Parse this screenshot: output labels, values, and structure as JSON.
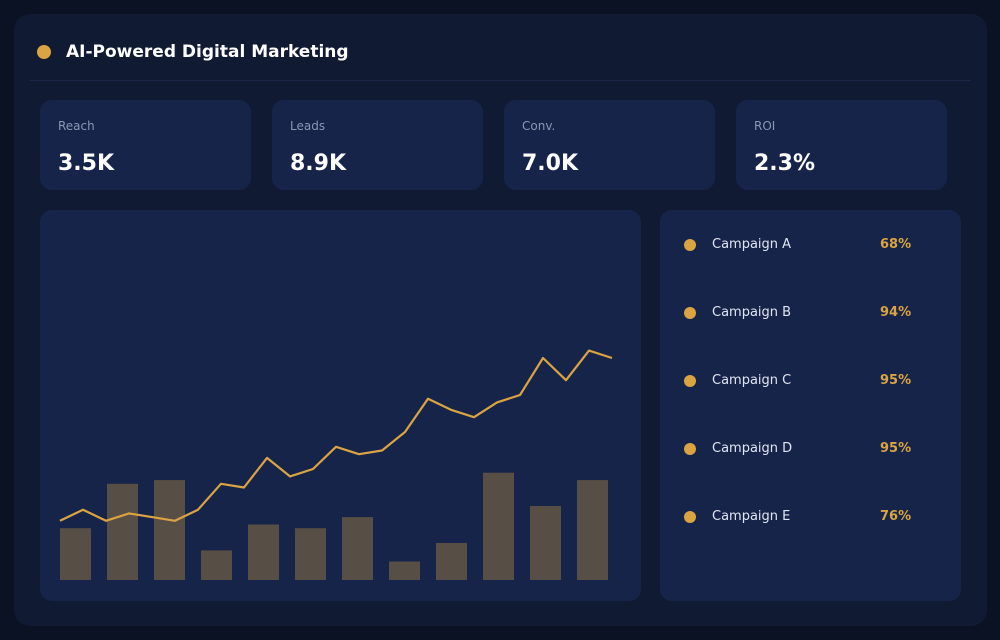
{
  "header": {
    "title": "AI-Powered Digital Marketing",
    "accent": "#d9a441"
  },
  "kpis": [
    {
      "label": "Reach",
      "value": "3.5K"
    },
    {
      "label": "Leads",
      "value": "8.9K"
    },
    {
      "label": "Conv.",
      "value": "7.0K"
    },
    {
      "label": "ROI",
      "value": "2.3%"
    }
  ],
  "campaigns": [
    {
      "name": "Campaign A",
      "percent": "68%"
    },
    {
      "name": "Campaign B",
      "percent": "94%"
    },
    {
      "name": "Campaign C",
      "percent": "95%"
    },
    {
      "name": "Campaign D",
      "percent": "95%"
    },
    {
      "name": "Campaign E",
      "percent": "76%"
    }
  ],
  "chart_data": {
    "type": "bar",
    "title": "",
    "xlabel": "",
    "ylabel": "",
    "grid": false,
    "ylim": [
      0,
      100
    ],
    "bars": {
      "color": "#574e45",
      "values": [
        14,
        26,
        27,
        8,
        15,
        14,
        17,
        5,
        10,
        29,
        20,
        27
      ]
    },
    "line": {
      "color": "#d9a441",
      "values": [
        16,
        19,
        16,
        18,
        17,
        16,
        19,
        26,
        25,
        33,
        28,
        30,
        36,
        34,
        35,
        40,
        49,
        46,
        44,
        48,
        50,
        60,
        54,
        62,
        60
      ]
    }
  }
}
